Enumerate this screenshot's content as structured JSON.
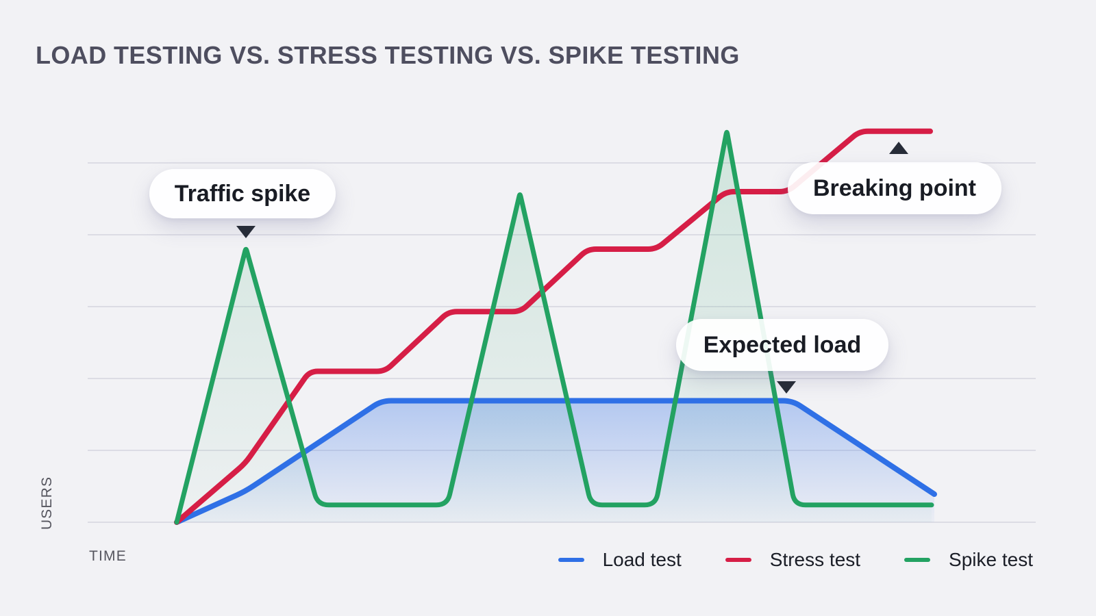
{
  "chart_data": {
    "type": "line",
    "title": "LOAD TESTING VS. STRESS TESTING VS. SPIKE TESTING",
    "xlabel": "TIME",
    "ylabel": "USERS",
    "axis_ticks": "none (qualitative axes)",
    "xlim": [
      -1.3,
      12.5
    ],
    "ylim": [
      0,
      5.5
    ],
    "grid": "horizontal gridlines at users = 0,1,2,3,4,5",
    "legend_position": "bottom-right",
    "series": [
      {
        "name": "Load test",
        "color": "#2f70e6",
        "area_fill": true,
        "shape": "ramp up to a flat expected-load plateau, then ramp down",
        "points": [
          [
            0,
            0
          ],
          [
            1,
            0.43
          ],
          [
            2.99,
            1.69
          ],
          [
            8.99,
            1.69
          ],
          [
            11.06,
            0.39
          ]
        ]
      },
      {
        "name": "Stress test",
        "color": "#d61e46",
        "area_fill": false,
        "shape": "staircase of increasing plateaus up to the breaking point",
        "points": [
          [
            0,
            0
          ],
          [
            1,
            0.82
          ],
          [
            1.94,
            2.1
          ],
          [
            3.04,
            2.1
          ],
          [
            3.97,
            2.93
          ],
          [
            5.02,
            2.93
          ],
          [
            6.0,
            3.8
          ],
          [
            7.0,
            3.8
          ],
          [
            8.02,
            4.6
          ],
          [
            8.92,
            4.6
          ],
          [
            9.97,
            5.44
          ],
          [
            11.0,
            5.44
          ]
        ]
      },
      {
        "name": "Spike test",
        "color": "#23a262",
        "area_fill": true,
        "shape": "three sudden spikes of increasing height returning to a low baseline",
        "points": [
          [
            0,
            0
          ],
          [
            1.01,
            3.82
          ],
          [
            2.06,
            0.24
          ],
          [
            3.95,
            0.24
          ],
          [
            5.01,
            4.58
          ],
          [
            6.05,
            0.24
          ],
          [
            6.99,
            0.24
          ],
          [
            8.03,
            5.45
          ],
          [
            9.02,
            0.24
          ],
          [
            11.02,
            0.24
          ]
        ]
      }
    ],
    "annotations": [
      {
        "text": "Traffic spike",
        "target": "first spike-test peak",
        "pointer": "down"
      },
      {
        "text": "Breaking point",
        "target": "stress-test final plateau",
        "pointer": "up"
      },
      {
        "text": "Expected load",
        "target": "end of load-test plateau",
        "pointer": "down"
      }
    ]
  },
  "colors": {
    "background": "#f2f2f5",
    "gridline": "#d5d5df",
    "title_text": "#4e4e5f",
    "axis_label_text": "#55555e",
    "annotation_text": "#191c24",
    "pointer_arrow": "#272c38",
    "pill_background": "#ffffff",
    "load_test": "#2f70e6",
    "stress_test": "#d61e46",
    "spike_test": "#23a262"
  }
}
